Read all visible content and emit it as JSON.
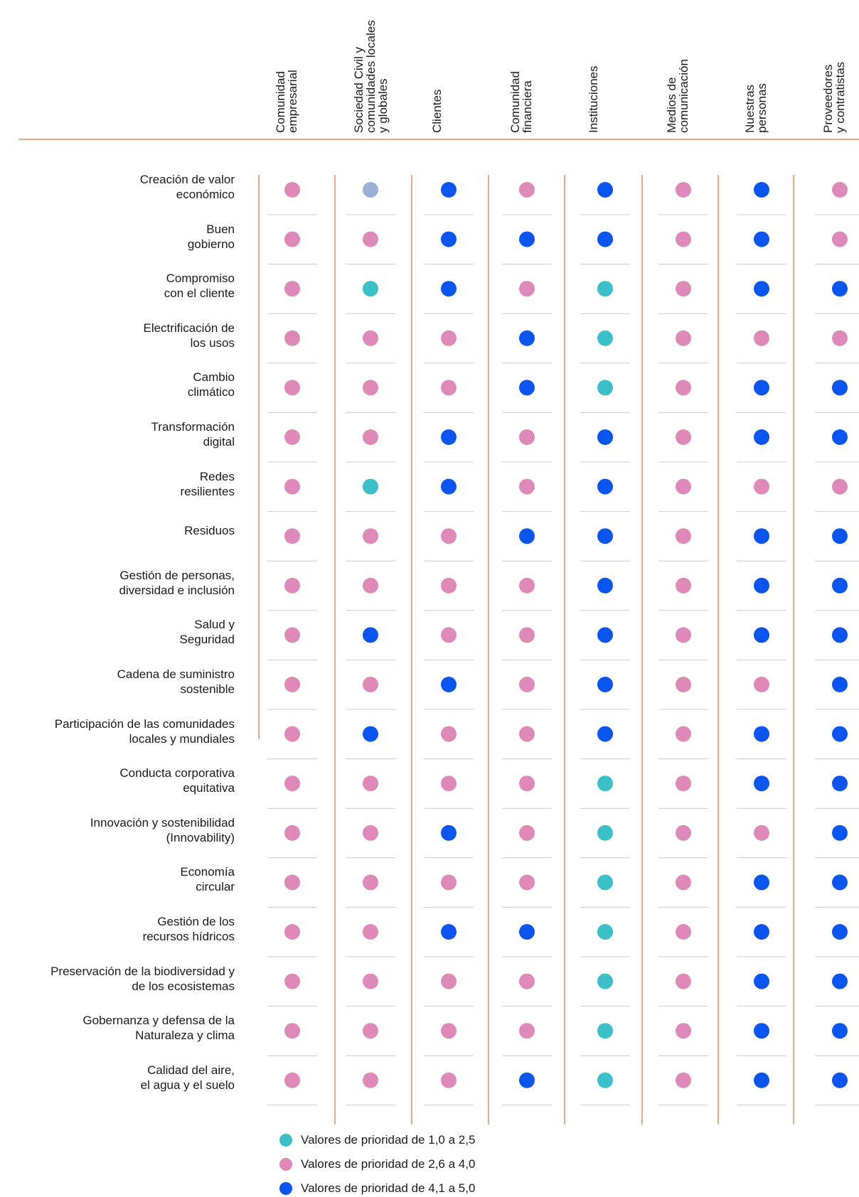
{
  "colors": {
    "low": "#3bbfc8",
    "mid": "#df89b8",
    "high": "#0a55f0",
    "other": "#9ab0d6",
    "divider": "#f08858",
    "rule": "#cccccc"
  },
  "chart_data": {
    "type": "table",
    "columns": [
      "Comunidad\nempresarial",
      "Sociedad Civil y\ncomunidades locales\ny globales",
      "Clientes",
      "Comunidad\nfinanciera",
      "Instituciones",
      "Medios de\ncomunicación",
      "Nuestras\npersonas",
      "Proveedores\ny contratistas"
    ],
    "rows": [
      "Creación de valor\neconómico",
      "Buen\ngobierno",
      "Compromiso\ncon el cliente",
      "Electrificación de\nlos usos",
      "Cambio\nclimático",
      "Transformación\ndigital",
      "Redes\nresilientes",
      "Residuos",
      "Gestión de personas,\ndiversidad e inclusión",
      "Salud y\nSeguridad",
      "Cadena de suministro\nsostenible",
      "Participación de las comunidades\nlocales y mundiales",
      "Conducta corporativa\nequitativa",
      "Innovación y sostenibilidad\n(Innovability)",
      "Economía\ncircular",
      "Gestión de los\nrecursos hídricos",
      "Preservación de la biodiversidad y\nde los ecosistemas",
      "Gobernanza y defensa de la\nNaturaleza y clima",
      "Calidad del aire,\nel agua y el suelo"
    ],
    "values": [
      [
        "mid",
        "other",
        "high",
        "mid",
        "high",
        "mid",
        "high",
        "mid"
      ],
      [
        "mid",
        "mid",
        "high",
        "high",
        "high",
        "mid",
        "high",
        "mid"
      ],
      [
        "mid",
        "low",
        "high",
        "mid",
        "low",
        "mid",
        "high",
        "high"
      ],
      [
        "mid",
        "mid",
        "mid",
        "high",
        "low",
        "mid",
        "mid",
        "mid"
      ],
      [
        "mid",
        "mid",
        "mid",
        "high",
        "low",
        "mid",
        "high",
        "high"
      ],
      [
        "mid",
        "mid",
        "high",
        "mid",
        "high",
        "mid",
        "high",
        "high"
      ],
      [
        "mid",
        "low",
        "high",
        "mid",
        "high",
        "mid",
        "mid",
        "mid"
      ],
      [
        "mid",
        "mid",
        "mid",
        "high",
        "high",
        "mid",
        "high",
        "high"
      ],
      [
        "mid",
        "mid",
        "mid",
        "mid",
        "high",
        "mid",
        "high",
        "high"
      ],
      [
        "mid",
        "high",
        "mid",
        "mid",
        "high",
        "mid",
        "high",
        "high"
      ],
      [
        "mid",
        "mid",
        "high",
        "mid",
        "high",
        "mid",
        "mid",
        "high"
      ],
      [
        "mid",
        "high",
        "mid",
        "mid",
        "high",
        "mid",
        "high",
        "high"
      ],
      [
        "mid",
        "mid",
        "mid",
        "mid",
        "low",
        "mid",
        "high",
        "high"
      ],
      [
        "mid",
        "mid",
        "high",
        "mid",
        "low",
        "mid",
        "mid",
        "high"
      ],
      [
        "mid",
        "mid",
        "mid",
        "mid",
        "low",
        "mid",
        "high",
        "high"
      ],
      [
        "mid",
        "mid",
        "high",
        "high",
        "low",
        "mid",
        "high",
        "high"
      ],
      [
        "mid",
        "mid",
        "mid",
        "mid",
        "low",
        "mid",
        "high",
        "high"
      ],
      [
        "mid",
        "mid",
        "mid",
        "mid",
        "low",
        "mid",
        "high",
        "high"
      ],
      [
        "mid",
        "mid",
        "mid",
        "high",
        "low",
        "mid",
        "high",
        "high"
      ]
    ]
  },
  "legend": [
    {
      "key": "low",
      "label": "Valores de prioridad de 1,0 a 2,5"
    },
    {
      "key": "mid",
      "label": "Valores de prioridad de 2,6 a 4,0"
    },
    {
      "key": "high",
      "label": "Valores de prioridad de 4,1 a 5,0"
    }
  ]
}
